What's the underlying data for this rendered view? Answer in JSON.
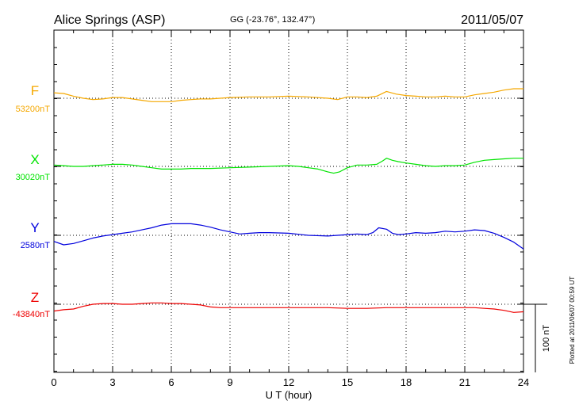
{
  "header": {
    "station": "Alice Springs (ASP)",
    "coords": "GG (-23.76°, 132.47°)",
    "date": "2011/05/07"
  },
  "footer": {
    "plotted": "Plotted at 2011/06/07 00:59 UT"
  },
  "chart_data": {
    "type": "line",
    "xlabel": "U T (hour)",
    "xlim": [
      0,
      24
    ],
    "x_ticks": [
      "0",
      "3",
      "6",
      "9",
      "12",
      "15",
      "18",
      "21",
      "24"
    ],
    "scale_label": "100 nT",
    "grid": "dotted",
    "series": [
      {
        "name": "F",
        "baseline_label": "53200nT",
        "color": "#f5a800",
        "unit_offset": "nT from baseline",
        "x": [
          0,
          0.5,
          1,
          1.5,
          2,
          2.5,
          3,
          3.5,
          4,
          4.5,
          5,
          5.5,
          6,
          6.5,
          7,
          7.5,
          8,
          8.5,
          9,
          10,
          11,
          12,
          13,
          14,
          14.5,
          15,
          15.5,
          16,
          16.5,
          17,
          17.5,
          18,
          18.5,
          19,
          19.5,
          20,
          20.5,
          21,
          21.5,
          22,
          22.5,
          23,
          23.5,
          24
        ],
        "values": [
          8,
          7,
          3,
          0,
          -2,
          -1,
          1,
          1,
          -1,
          -3,
          -5,
          -5,
          -5,
          -3,
          -2,
          -1,
          -1,
          0,
          1,
          2,
          2,
          3,
          2,
          0,
          -2,
          2,
          2,
          1,
          3,
          10,
          6,
          4,
          3,
          2,
          2,
          3,
          2,
          2,
          5,
          7,
          9,
          12,
          14,
          14
        ]
      },
      {
        "name": "X",
        "baseline_label": "30020nT",
        "color": "#00e400",
        "unit_offset": "nT from baseline",
        "x": [
          0,
          0.5,
          1,
          1.5,
          2,
          2.5,
          3,
          3.5,
          4,
          4.5,
          5,
          5.5,
          6,
          6.5,
          7,
          7.5,
          8,
          9,
          10,
          11,
          12,
          12.5,
          13,
          13.5,
          14,
          14.3,
          14.6,
          15,
          15.5,
          16,
          16.5,
          16.8,
          17,
          17.3,
          17.6,
          18,
          18.5,
          19,
          19.5,
          20,
          20.5,
          21,
          21.5,
          22,
          22.5,
          23,
          23.5,
          24
        ],
        "values": [
          2,
          1,
          0,
          0,
          1,
          2,
          3,
          3,
          2,
          0,
          -2,
          -4,
          -4,
          -4,
          -3,
          -3,
          -3,
          -2,
          -1,
          0,
          1,
          0,
          -2,
          -4,
          -8,
          -10,
          -8,
          -2,
          2,
          2,
          3,
          8,
          12,
          9,
          7,
          5,
          3,
          1,
          0,
          1,
          1,
          2,
          6,
          9,
          10,
          11,
          12,
          12
        ]
      },
      {
        "name": "Y",
        "baseline_label": "2580nT",
        "color": "#0000dd",
        "unit_offset": "nT from baseline",
        "x": [
          0,
          0.5,
          1,
          1.5,
          2,
          2.5,
          3,
          3.5,
          4,
          4.5,
          5,
          5.5,
          6,
          6.5,
          7,
          7.5,
          8,
          8.5,
          9,
          9.5,
          10,
          10.5,
          11,
          12,
          13,
          14,
          14.5,
          15,
          15.5,
          16,
          16.3,
          16.6,
          17,
          17.3,
          17.6,
          18,
          18.5,
          19,
          19.5,
          20,
          20.5,
          21,
          21.5,
          22,
          22.5,
          23,
          23.5,
          24
        ],
        "values": [
          -9,
          -14,
          -12,
          -8,
          -4,
          -1,
          1,
          3,
          5,
          8,
          11,
          15,
          17,
          17,
          17,
          15,
          12,
          8,
          5,
          2,
          3,
          4,
          4,
          3,
          0,
          -1,
          0,
          1,
          2,
          1,
          4,
          11,
          9,
          3,
          1,
          2,
          4,
          3,
          4,
          6,
          5,
          6,
          8,
          7,
          3,
          -3,
          -10,
          -20
        ]
      },
      {
        "name": "Z",
        "baseline_label": "-43840nT",
        "color": "#ee0000",
        "unit_offset": "nT from baseline",
        "x": [
          0,
          0.5,
          1,
          1.5,
          2,
          2.5,
          3,
          3.5,
          4,
          4.5,
          5,
          5.5,
          6,
          6.5,
          7,
          7.5,
          8,
          8.5,
          9,
          10,
          11,
          12,
          13,
          14,
          15,
          16,
          17,
          18,
          19,
          20,
          21,
          21.5,
          22,
          22.5,
          23,
          23.5,
          24
        ],
        "values": [
          -10,
          -8,
          -7,
          -3,
          0,
          1,
          1,
          0,
          0,
          1,
          2,
          2,
          1,
          1,
          0,
          -1,
          -4,
          -5,
          -5,
          -5,
          -5,
          -5,
          -5,
          -5,
          -6,
          -6,
          -5,
          -5,
          -5,
          -5,
          -5,
          -5,
          -6,
          -7,
          -9,
          -12,
          -11
        ]
      }
    ]
  }
}
